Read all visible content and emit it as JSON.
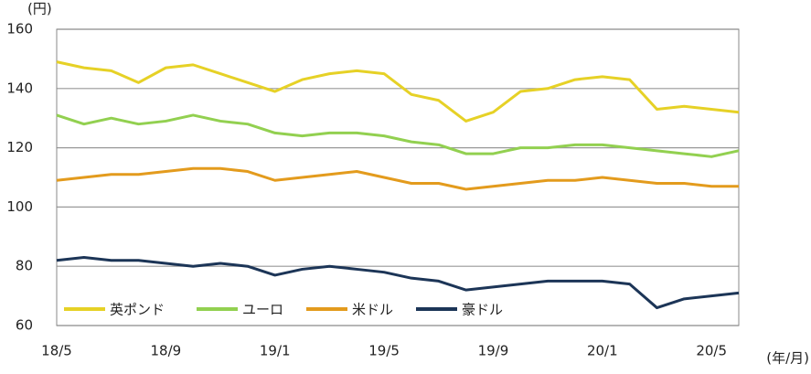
{
  "chart_data": {
    "type": "line",
    "y_axis_label": "(円)",
    "x_axis_label": "(年/月)",
    "categories": [
      "18/5",
      null,
      null,
      null,
      "18/9",
      null,
      null,
      null,
      "19/1",
      null,
      null,
      null,
      "19/5",
      null,
      null,
      null,
      "19/9",
      null,
      null,
      null,
      "20/1",
      null,
      null,
      null,
      "20/5",
      null
    ],
    "series": [
      {
        "name": "英ポンド",
        "color": "#e6d126",
        "values": [
          149,
          147,
          146,
          142,
          147,
          148,
          145,
          142,
          139,
          143,
          145,
          146,
          145,
          138,
          136,
          129,
          132,
          139,
          140,
          143,
          144,
          143,
          133,
          134,
          133,
          132
        ]
      },
      {
        "name": "ユーロ",
        "color": "#92d050",
        "values": [
          131,
          128,
          130,
          128,
          129,
          131,
          129,
          128,
          125,
          124,
          125,
          125,
          124,
          122,
          121,
          118,
          118,
          120,
          120,
          121,
          121,
          120,
          119,
          118,
          117,
          119
        ]
      },
      {
        "name": "米ドル",
        "color": "#e39b1d",
        "values": [
          109,
          110,
          111,
          111,
          112,
          113,
          113,
          112,
          109,
          110,
          111,
          112,
          110,
          108,
          108,
          106,
          107,
          108,
          109,
          109,
          110,
          109,
          108,
          108,
          107,
          107
        ]
      },
      {
        "name": "豪ドル",
        "color": "#1c3557",
        "values": [
          82,
          83,
          82,
          82,
          81,
          80,
          81,
          80,
          77,
          79,
          80,
          79,
          78,
          76,
          75,
          72,
          73,
          74,
          75,
          75,
          75,
          74,
          66,
          69,
          70,
          71
        ]
      }
    ],
    "ylim": [
      60,
      160
    ],
    "yticks": [
      60,
      80,
      100,
      120,
      140,
      160
    ],
    "grid": true,
    "legend": "bottom-left"
  }
}
